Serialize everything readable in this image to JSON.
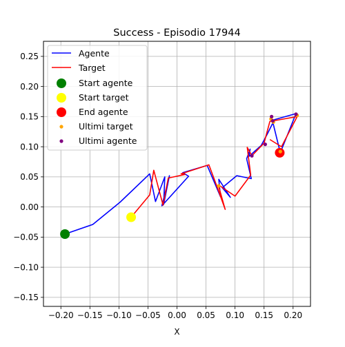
{
  "chart_data": {
    "type": "line",
    "title": "Success - Episodio 17944",
    "xlabel": "X",
    "ylabel": "Y",
    "xlim": [
      -0.23,
      0.23
    ],
    "ylim": [
      -0.165,
      0.275
    ],
    "xticks": [
      -0.2,
      -0.15,
      -0.1,
      -0.05,
      0.0,
      0.05,
      0.1,
      0.15,
      0.2
    ],
    "xtick_labels": [
      "−0.20",
      "−0.15",
      "−0.10",
      "−0.05",
      "0.00",
      "0.05",
      "0.10",
      "0.15",
      "0.20"
    ],
    "yticks": [
      -0.15,
      -0.1,
      -0.05,
      0.0,
      0.05,
      0.1,
      0.15,
      0.2,
      0.25
    ],
    "ytick_labels": [
      "−0.15",
      "−0.10",
      "−0.05",
      "0.00",
      "0.05",
      "0.10",
      "0.15",
      "0.20",
      "0.25"
    ],
    "grid": true,
    "legend_position": "top-left",
    "series": [
      {
        "name": "Agente",
        "kind": "line",
        "color": "#0000ff",
        "points": [
          [
            -0.193,
            -0.045
          ],
          [
            -0.145,
            -0.029
          ],
          [
            -0.098,
            0.008
          ],
          [
            -0.047,
            0.055
          ],
          [
            -0.037,
            0.009
          ],
          [
            -0.021,
            0.05
          ],
          [
            -0.023,
            0.004
          ],
          [
            -0.013,
            0.052
          ],
          [
            -0.026,
            0.002
          ],
          [
            0.02,
            0.051
          ],
          [
            0.01,
            0.057
          ],
          [
            0.052,
            0.069
          ],
          [
            0.075,
            0.017
          ],
          [
            0.072,
            0.046
          ],
          [
            0.092,
            0.016
          ],
          [
            0.078,
            0.032
          ],
          [
            0.103,
            0.052
          ],
          [
            0.128,
            0.047
          ],
          [
            0.12,
            0.08
          ],
          [
            0.126,
            0.096
          ],
          [
            0.124,
            0.084
          ],
          [
            0.145,
            0.102
          ],
          [
            0.155,
            0.12
          ],
          [
            0.168,
            0.145
          ],
          [
            0.205,
            0.155
          ],
          [
            0.178,
            0.09
          ],
          [
            0.165,
            0.141
          ]
        ]
      },
      {
        "name": "Target",
        "kind": "line",
        "color": "#ff0000",
        "points": [
          [
            -0.079,
            -0.017
          ],
          [
            -0.047,
            0.02
          ],
          [
            -0.04,
            0.061
          ],
          [
            -0.024,
            0.003
          ],
          [
            -0.015,
            0.048
          ],
          [
            0.014,
            0.054
          ],
          [
            0.007,
            0.055
          ],
          [
            0.055,
            0.07
          ],
          [
            0.07,
            0.031
          ],
          [
            0.083,
            -0.004
          ],
          [
            0.071,
            0.037
          ],
          [
            0.1,
            0.018
          ],
          [
            0.127,
            0.053
          ],
          [
            0.121,
            0.099
          ],
          [
            0.129,
            0.085
          ],
          [
            0.15,
            0.106
          ],
          [
            0.16,
            0.142
          ],
          [
            0.207,
            0.15
          ],
          [
            0.18,
            0.1
          ],
          [
            0.16,
            0.112
          ]
        ]
      },
      {
        "name": "Start agente",
        "kind": "marker",
        "color": "#008000",
        "points": [
          [
            -0.193,
            -0.045
          ]
        ]
      },
      {
        "name": "Start target",
        "kind": "marker",
        "color": "#ffff00",
        "points": [
          [
            -0.079,
            -0.017
          ]
        ]
      },
      {
        "name": "End agente",
        "kind": "marker",
        "color": "#ff0000",
        "points": [
          [
            0.177,
            0.09
          ]
        ]
      },
      {
        "name": "Ultimi target",
        "kind": "scatter",
        "color": "#ffa500",
        "points": [
          [
            0.178,
            0.092
          ],
          [
            0.207,
            0.152
          ],
          [
            0.162,
            0.146
          ],
          [
            0.166,
            0.141
          ],
          [
            0.072,
            0.035
          ]
        ]
      },
      {
        "name": "Ultimi agente",
        "kind": "scatter",
        "color": "#800080",
        "points": [
          [
            0.165,
            0.143
          ],
          [
            0.163,
            0.15
          ],
          [
            0.205,
            0.154
          ],
          [
            0.152,
            0.104
          ],
          [
            0.129,
            0.085
          ]
        ]
      }
    ]
  }
}
